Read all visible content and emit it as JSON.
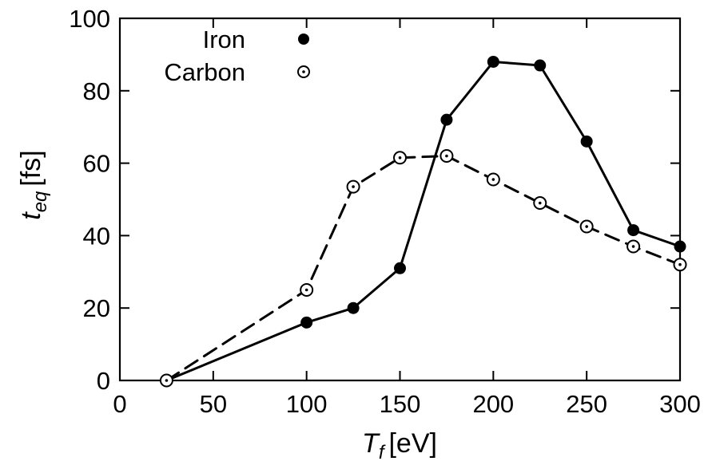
{
  "chart_data": {
    "type": "line",
    "x_ticks": [
      0,
      50,
      100,
      150,
      200,
      250,
      300
    ],
    "y_ticks": [
      0,
      20,
      40,
      60,
      80,
      100
    ],
    "xlim": [
      0,
      300
    ],
    "ylim": [
      0,
      100
    ],
    "xlabel": {
      "var_base": "T",
      "var_sub": "f",
      "unit": "[eV]"
    },
    "ylabel": {
      "var_base": "t",
      "var_sub": "eq",
      "unit": "[fs]"
    },
    "legend_position": "top-left",
    "grid": false,
    "series": [
      {
        "name": "Iron",
        "marker": "filled-circle",
        "line_style": "solid",
        "color": "#000000",
        "x": [
          25,
          100,
          125,
          150,
          175,
          200,
          225,
          250,
          275,
          300
        ],
        "y": [
          0,
          16,
          20,
          31,
          72,
          88,
          87,
          66,
          41.5,
          37
        ]
      },
      {
        "name": "Carbon",
        "marker": "open-circle-dot",
        "line_style": "dashed",
        "color": "#000000",
        "x": [
          25,
          100,
          125,
          150,
          175,
          200,
          225,
          250,
          275,
          300
        ],
        "y": [
          0,
          25,
          53.5,
          61.5,
          62,
          55.5,
          49,
          42.5,
          37,
          32
        ]
      }
    ]
  }
}
